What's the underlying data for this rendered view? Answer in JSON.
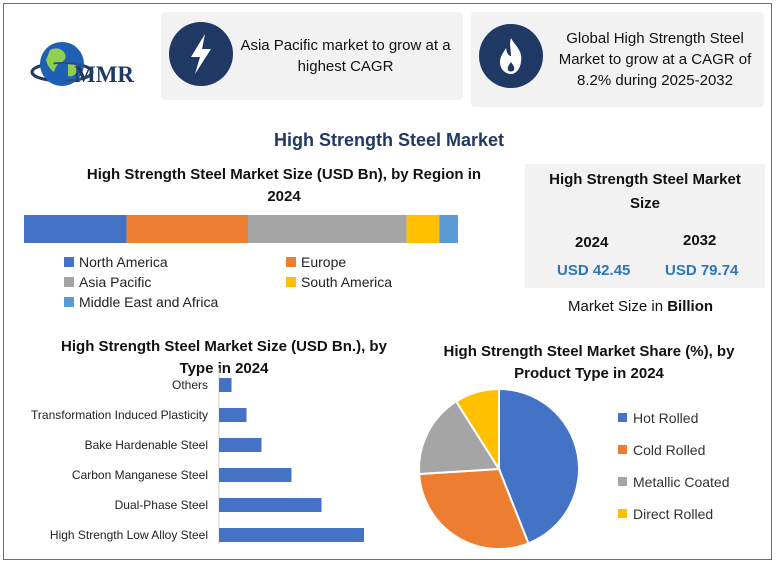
{
  "logo": {
    "text": "MMR"
  },
  "cards": [
    {
      "icon": "lightning-icon",
      "text": "Asia Pacific market to grow at a highest CAGR"
    },
    {
      "icon": "flame-icon",
      "text": "Global High Strength Steel Market to grow at a CAGR of 8.2% during 2025-2032"
    }
  ],
  "main_title": "High Strength Steel Market",
  "market_size": {
    "title": "High Strength Steel Market Size",
    "years": [
      "2024",
      "2032"
    ],
    "values": [
      "USD 42.45",
      "USD 79.74"
    ],
    "footer_prefix": "Market Size in ",
    "footer_bold": "Billion"
  },
  "chart_data": [
    {
      "type": "bar",
      "orientation": "horizontal-stacked",
      "title": "High Strength Steel Market Size (USD Bn), by Region in 2024",
      "series": [
        {
          "name": "North America",
          "value": 22,
          "color": "#4472c4"
        },
        {
          "name": "Europe",
          "value": 26,
          "color": "#ed7d31"
        },
        {
          "name": "Asia Pacific",
          "value": 34,
          "color": "#a5a5a5"
        },
        {
          "name": "South America",
          "value": 7,
          "color": "#ffc000"
        },
        {
          "name": "Middle East and Africa",
          "value": 4,
          "color": "#5b9bd5"
        }
      ],
      "legend": "bottom"
    },
    {
      "type": "bar",
      "orientation": "horizontal",
      "title": "High Strength Steel Market Size (USD Bn.), by Type in 2024",
      "categories": [
        "Others",
        "Transformation Induced Plasticity",
        "Bake Hardenable Steel",
        "Carbon Manganese Steel",
        "Dual-Phase Steel",
        "High Strength Low Alloy Steel"
      ],
      "values": [
        2.5,
        5.5,
        8.5,
        14.5,
        20.5,
        29.0
      ],
      "color": "#4472c4",
      "xlim": [
        0,
        30
      ]
    },
    {
      "type": "pie",
      "title": "High Strength Steel Market Share (%), by Product Type in 2024",
      "categories": [
        "Hot Rolled",
        "Cold Rolled",
        "Metallic Coated",
        "Direct Rolled"
      ],
      "values": [
        44,
        30,
        17,
        9
      ],
      "colors": [
        "#4472c4",
        "#ed7d31",
        "#a5a5a5",
        "#ffc000"
      ],
      "legend": "right"
    }
  ]
}
